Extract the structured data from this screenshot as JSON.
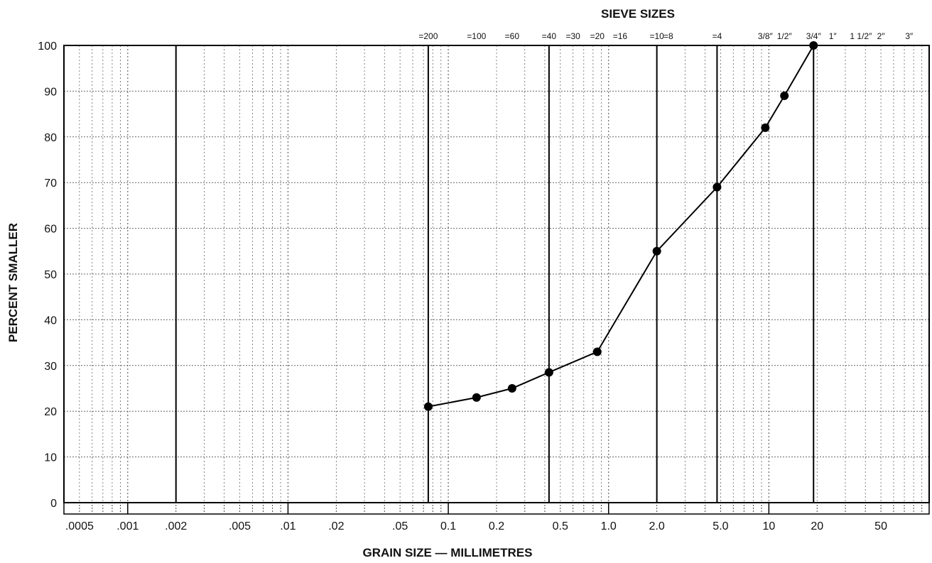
{
  "chart_data": {
    "type": "line",
    "title": "SIEVE SIZES",
    "xlabel": "GRAIN SIZE — MILLIMETRES",
    "ylabel": "PERCENT SMALLER",
    "x_scale": "log",
    "xlim": [
      0.0004,
      100
    ],
    "ylim": [
      0,
      100
    ],
    "grid": true,
    "y_ticks": [
      0,
      10,
      20,
      30,
      40,
      50,
      60,
      70,
      80,
      90,
      100
    ],
    "x_ticks": [
      {
        "value": 0.0005,
        "label": ".0005"
      },
      {
        "value": 0.001,
        "label": ".001"
      },
      {
        "value": 0.002,
        "label": ".002"
      },
      {
        "value": 0.005,
        "label": ".005"
      },
      {
        "value": 0.01,
        "label": ".01"
      },
      {
        "value": 0.02,
        "label": ".02"
      },
      {
        "value": 0.05,
        "label": ".05"
      },
      {
        "value": 0.1,
        "label": "0.1"
      },
      {
        "value": 0.2,
        "label": "0.2"
      },
      {
        "value": 0.5,
        "label": "0.5"
      },
      {
        "value": 1.0,
        "label": "1.0"
      },
      {
        "value": 2.0,
        "label": "2.0"
      },
      {
        "value": 5.0,
        "label": "5.0"
      },
      {
        "value": 10,
        "label": "10"
      },
      {
        "value": 20,
        "label": "20"
      },
      {
        "value": 50,
        "label": "50"
      }
    ],
    "sieve_sizes": [
      {
        "value": 0.075,
        "label": "=200",
        "line": true
      },
      {
        "value": 0.15,
        "label": "=100",
        "line": false
      },
      {
        "value": 0.25,
        "label": "=60",
        "line": false
      },
      {
        "value": 0.425,
        "label": "=40",
        "line": true
      },
      {
        "value": 0.6,
        "label": "=30",
        "line": false
      },
      {
        "value": 0.85,
        "label": "=20",
        "line": false
      },
      {
        "value": 1.18,
        "label": "=16",
        "line": false
      },
      {
        "value": 2.0,
        "label": "=10",
        "line": true
      },
      {
        "value": 2.36,
        "label": "=8",
        "line": false
      },
      {
        "value": 4.75,
        "label": "=4",
        "line": true
      },
      {
        "value": 9.5,
        "label": "3/8″",
        "line": false
      },
      {
        "value": 12.5,
        "label": "1/2″",
        "line": false
      },
      {
        "value": 19,
        "label": "3/4″",
        "line": true
      },
      {
        "value": 25,
        "label": "1″",
        "line": false
      },
      {
        "value": 37.5,
        "label": "1 1/2″",
        "line": false
      },
      {
        "value": 50,
        "label": "2″",
        "line": false
      },
      {
        "value": 75,
        "label": "3″",
        "line": false
      }
    ],
    "reference_lines": [
      0.002
    ],
    "series": [
      {
        "x": [
          0.075,
          0.15,
          0.25,
          0.425,
          0.85,
          2.0,
          4.75,
          9.5,
          12.5,
          19
        ],
        "y": [
          21,
          23,
          25,
          28.5,
          33,
          55,
          69,
          82,
          89,
          100
        ]
      }
    ]
  },
  "colors": {
    "line": "#000000",
    "grid": "#666666",
    "text": "#111111"
  }
}
